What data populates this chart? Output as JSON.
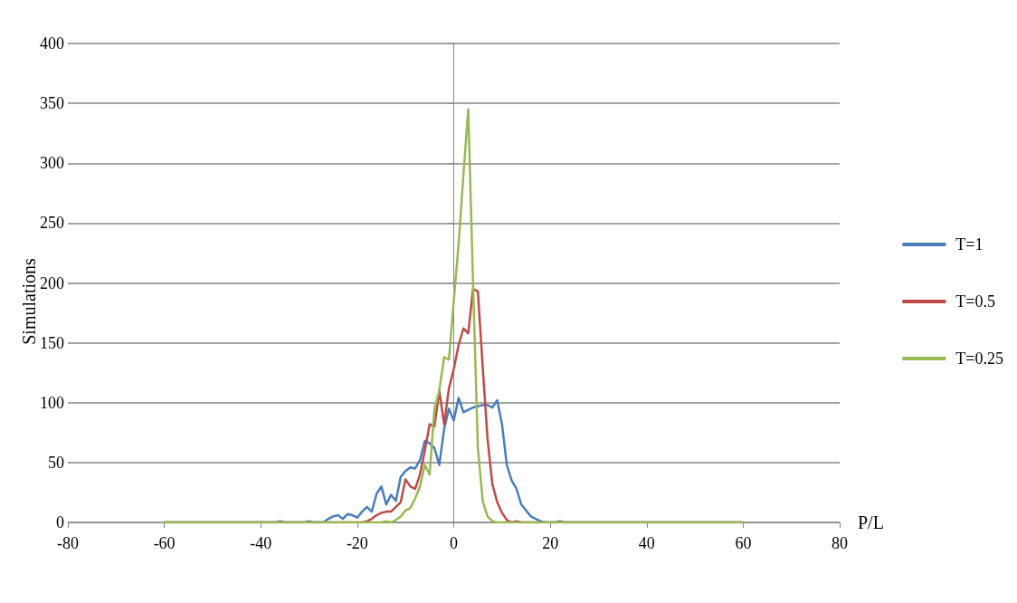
{
  "chart_data": {
    "type": "line",
    "xlabel": "P/L",
    "ylabel": "Simulations",
    "xlim": [
      -80,
      80
    ],
    "xticks": [
      -80,
      -60,
      -40,
      -20,
      0,
      20,
      40,
      60,
      80
    ],
    "ylim": [
      0,
      400
    ],
    "yticks": [
      0,
      50,
      100,
      150,
      200,
      250,
      300,
      350,
      400
    ],
    "grid": "y",
    "legend": "right",
    "marker": "none",
    "line_style": "solid",
    "series": [
      {
        "name": "T=1",
        "color": "#4a7ebb",
        "x": [
          -60,
          -37,
          -36,
          -35,
          -31,
          -30,
          -29,
          -27,
          -26,
          -25,
          -24,
          -23,
          -22,
          -21,
          -20,
          -19,
          -18,
          -17,
          -16,
          -15,
          -14,
          -13,
          -12,
          -11,
          -10,
          -9,
          -8,
          -7,
          -6,
          -5,
          -4,
          -3,
          -2,
          -1,
          0,
          1,
          2,
          3,
          4,
          5,
          6,
          7,
          8,
          9,
          10,
          11,
          12,
          13,
          14,
          15,
          16,
          17,
          18,
          19,
          21,
          22,
          23,
          60
        ],
        "values": [
          0,
          0,
          1,
          0,
          0,
          1,
          0,
          0,
          3,
          5,
          6,
          3,
          7,
          6,
          4,
          9,
          13,
          9,
          24,
          30,
          15,
          23,
          18,
          38,
          43,
          46,
          45,
          52,
          68,
          66,
          62,
          48,
          78,
          95,
          85,
          104,
          92,
          94,
          96,
          97,
          98,
          98,
          96,
          102,
          82,
          48,
          35,
          28,
          15,
          10,
          5,
          3,
          1,
          0,
          0,
          1,
          0,
          0
        ]
      },
      {
        "name": "T=0.5",
        "color": "#be4b48",
        "x": [
          -60,
          -19,
          -18,
          -17,
          -16,
          -15,
          -14,
          -13,
          -12,
          -11,
          -10,
          -9,
          -8,
          -7,
          -6,
          -5,
          -4,
          -3,
          -2,
          -1,
          0,
          1,
          2,
          3,
          4,
          5,
          6,
          7,
          8,
          9,
          10,
          11,
          12,
          13,
          14,
          60
        ],
        "values": [
          0,
          0,
          1,
          3,
          6,
          8,
          9,
          9,
          13,
          17,
          36,
          30,
          28,
          40,
          60,
          82,
          80,
          110,
          82,
          112,
          128,
          148,
          162,
          158,
          195,
          193,
          130,
          70,
          32,
          17,
          8,
          2,
          0,
          1,
          0,
          0
        ]
      },
      {
        "name": "T=0.25",
        "color": "#98b954",
        "x": [
          -60,
          -15,
          -14,
          -13,
          -12,
          -11,
          -10,
          -9,
          -8,
          -7,
          -6,
          -5,
          -4,
          -3,
          -2,
          -1,
          0,
          1,
          2,
          3,
          4,
          5,
          6,
          7,
          8,
          9,
          60
        ],
        "values": [
          0,
          0,
          1,
          0,
          2,
          5,
          10,
          12,
          20,
          30,
          48,
          40,
          95,
          110,
          138,
          136,
          185,
          232,
          290,
          345,
          200,
          62,
          18,
          5,
          1,
          0,
          0
        ]
      }
    ]
  }
}
